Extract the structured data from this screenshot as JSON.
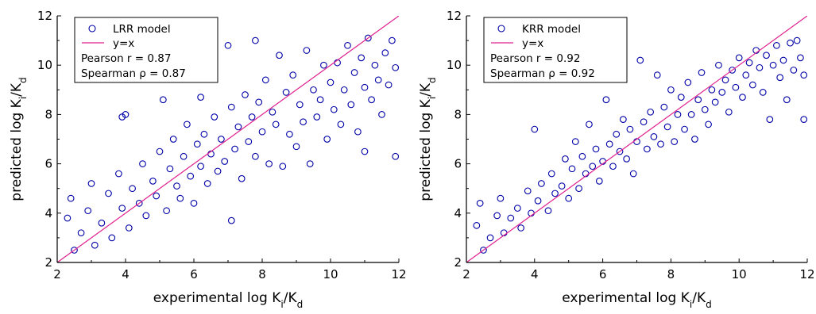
{
  "chart_data": [
    {
      "type": "scatter",
      "xlabel": {
        "base": "experimental log K",
        "sub1": "i",
        "slash": "/K",
        "sub2": "d"
      },
      "ylabel": {
        "base": "predicted log K",
        "sub1": "i",
        "slash": "/K",
        "sub2": "d"
      },
      "xlim": [
        2,
        12
      ],
      "ylim": [
        2,
        12
      ],
      "xticks": [
        2,
        4,
        6,
        8,
        10,
        12
      ],
      "yticks": [
        2,
        4,
        6,
        8,
        10,
        12
      ],
      "legend": {
        "position": "top-left",
        "entries": [
          "LRR model",
          "y=x"
        ],
        "stats": [
          "Pearson r = 0.87",
          "Spearman ρ = 0.87"
        ]
      },
      "series": [
        {
          "name": "LRR model",
          "marker": "open-circle",
          "color": "#0000a8",
          "points": [
            [
              2.3,
              3.8
            ],
            [
              2.5,
              2.5
            ],
            [
              2.4,
              4.6
            ],
            [
              2.7,
              3.2
            ],
            [
              2.9,
              4.1
            ],
            [
              3.1,
              2.7
            ],
            [
              3.0,
              5.2
            ],
            [
              3.3,
              3.6
            ],
            [
              3.5,
              4.8
            ],
            [
              3.6,
              3.0
            ],
            [
              3.8,
              5.6
            ],
            [
              3.9,
              4.2
            ],
            [
              4.0,
              8.0
            ],
            [
              3.9,
              7.9
            ],
            [
              4.1,
              3.4
            ],
            [
              4.2,
              5.0
            ],
            [
              4.4,
              4.4
            ],
            [
              4.5,
              6.0
            ],
            [
              4.6,
              3.9
            ],
            [
              4.8,
              5.3
            ],
            [
              4.9,
              4.7
            ],
            [
              5.0,
              6.5
            ],
            [
              5.1,
              8.6
            ],
            [
              5.2,
              4.1
            ],
            [
              5.3,
              5.8
            ],
            [
              5.4,
              7.0
            ],
            [
              5.5,
              5.1
            ],
            [
              5.6,
              4.6
            ],
            [
              5.7,
              6.3
            ],
            [
              5.8,
              7.6
            ],
            [
              5.9,
              5.5
            ],
            [
              6.0,
              4.4
            ],
            [
              6.1,
              6.8
            ],
            [
              6.2,
              5.9
            ],
            [
              6.2,
              8.7
            ],
            [
              6.3,
              7.2
            ],
            [
              6.4,
              5.2
            ],
            [
              6.5,
              6.4
            ],
            [
              6.6,
              7.9
            ],
            [
              6.7,
              5.7
            ],
            [
              6.8,
              7.0
            ],
            [
              6.9,
              6.1
            ],
            [
              7.0,
              10.8
            ],
            [
              7.1,
              3.7
            ],
            [
              7.1,
              8.3
            ],
            [
              7.2,
              6.6
            ],
            [
              7.3,
              7.5
            ],
            [
              7.4,
              5.4
            ],
            [
              7.5,
              8.8
            ],
            [
              7.6,
              6.9
            ],
            [
              7.7,
              7.9
            ],
            [
              7.8,
              11.0
            ],
            [
              7.8,
              6.3
            ],
            [
              7.9,
              8.5
            ],
            [
              8.0,
              7.3
            ],
            [
              8.1,
              9.4
            ],
            [
              8.2,
              6.0
            ],
            [
              8.3,
              8.1
            ],
            [
              8.4,
              7.6
            ],
            [
              8.5,
              10.4
            ],
            [
              8.6,
              5.9
            ],
            [
              8.7,
              8.9
            ],
            [
              8.8,
              7.2
            ],
            [
              8.9,
              9.6
            ],
            [
              9.0,
              6.7
            ],
            [
              9.1,
              8.4
            ],
            [
              9.2,
              7.7
            ],
            [
              9.3,
              10.6
            ],
            [
              9.4,
              6.0
            ],
            [
              9.5,
              9.0
            ],
            [
              9.6,
              7.9
            ],
            [
              9.7,
              8.6
            ],
            [
              9.8,
              10.0
            ],
            [
              9.9,
              7.0
            ],
            [
              10.0,
              9.3
            ],
            [
              10.1,
              8.2
            ],
            [
              10.2,
              10.1
            ],
            [
              10.3,
              7.6
            ],
            [
              10.4,
              9.0
            ],
            [
              10.5,
              10.8
            ],
            [
              10.6,
              8.4
            ],
            [
              10.7,
              9.7
            ],
            [
              10.8,
              7.3
            ],
            [
              10.9,
              10.3
            ],
            [
              11.0,
              6.5
            ],
            [
              11.0,
              9.1
            ],
            [
              11.1,
              11.1
            ],
            [
              11.2,
              8.6
            ],
            [
              11.3,
              10.0
            ],
            [
              11.4,
              9.4
            ],
            [
              11.5,
              8.0
            ],
            [
              11.6,
              10.5
            ],
            [
              11.7,
              9.2
            ],
            [
              11.8,
              11.0
            ],
            [
              11.9,
              6.3
            ],
            [
              11.9,
              9.9
            ]
          ]
        },
        {
          "name": "y=x",
          "type": "line",
          "color": "#e0208f",
          "x": [
            2,
            12
          ],
          "y": [
            2,
            12
          ]
        }
      ]
    },
    {
      "type": "scatter",
      "xlabel": {
        "base": "experimental log K",
        "sub1": "i",
        "slash": "/K",
        "sub2": "d"
      },
      "ylabel": {
        "base": "predicted log K",
        "sub1": "i",
        "slash": "/K",
        "sub2": "d"
      },
      "xlim": [
        2,
        12
      ],
      "ylim": [
        2,
        12
      ],
      "xticks": [
        2,
        4,
        6,
        8,
        10,
        12
      ],
      "yticks": [
        2,
        4,
        6,
        8,
        10,
        12
      ],
      "legend": {
        "position": "top-left",
        "entries": [
          "KRR model",
          "y=x"
        ],
        "stats": [
          "Pearson r = 0.92",
          "Spearman ρ = 0.92"
        ]
      },
      "series": [
        {
          "name": "KRR model",
          "marker": "open-circle",
          "color": "#0000a8",
          "points": [
            [
              2.3,
              3.5
            ],
            [
              2.5,
              2.5
            ],
            [
              2.4,
              4.4
            ],
            [
              2.7,
              3.0
            ],
            [
              2.9,
              3.9
            ],
            [
              3.1,
              3.2
            ],
            [
              3.0,
              4.6
            ],
            [
              3.3,
              3.8
            ],
            [
              3.5,
              4.2
            ],
            [
              3.6,
              3.4
            ],
            [
              3.8,
              4.9
            ],
            [
              3.9,
              4.0
            ],
            [
              4.0,
              7.4
            ],
            [
              4.1,
              4.5
            ],
            [
              4.2,
              5.2
            ],
            [
              4.4,
              4.1
            ],
            [
              4.5,
              5.6
            ],
            [
              4.6,
              4.8
            ],
            [
              4.8,
              5.1
            ],
            [
              4.9,
              6.2
            ],
            [
              5.0,
              4.6
            ],
            [
              5.1,
              5.8
            ],
            [
              5.2,
              6.9
            ],
            [
              5.3,
              5.0
            ],
            [
              5.4,
              6.3
            ],
            [
              5.5,
              5.6
            ],
            [
              5.6,
              7.6
            ],
            [
              5.7,
              5.9
            ],
            [
              5.8,
              6.6
            ],
            [
              5.9,
              5.3
            ],
            [
              6.0,
              6.1
            ],
            [
              6.1,
              8.6
            ],
            [
              6.2,
              6.8
            ],
            [
              6.3,
              5.9
            ],
            [
              6.4,
              7.2
            ],
            [
              6.5,
              6.5
            ],
            [
              6.6,
              7.8
            ],
            [
              6.7,
              6.2
            ],
            [
              6.8,
              7.4
            ],
            [
              6.9,
              5.6
            ],
            [
              7.0,
              6.9
            ],
            [
              7.1,
              10.2
            ],
            [
              7.2,
              7.7
            ],
            [
              7.3,
              6.6
            ],
            [
              7.4,
              8.1
            ],
            [
              7.5,
              7.1
            ],
            [
              7.6,
              9.6
            ],
            [
              7.7,
              6.8
            ],
            [
              7.8,
              8.3
            ],
            [
              7.9,
              7.5
            ],
            [
              8.0,
              9.0
            ],
            [
              8.1,
              6.9
            ],
            [
              8.2,
              8.0
            ],
            [
              8.3,
              8.7
            ],
            [
              8.4,
              7.4
            ],
            [
              8.5,
              9.3
            ],
            [
              8.6,
              8.0
            ],
            [
              8.7,
              7.0
            ],
            [
              8.8,
              8.6
            ],
            [
              8.9,
              9.7
            ],
            [
              9.0,
              8.2
            ],
            [
              9.1,
              7.6
            ],
            [
              9.2,
              9.0
            ],
            [
              9.3,
              8.5
            ],
            [
              9.4,
              10.0
            ],
            [
              9.5,
              8.9
            ],
            [
              9.6,
              9.4
            ],
            [
              9.7,
              8.1
            ],
            [
              9.8,
              9.8
            ],
            [
              9.9,
              9.1
            ],
            [
              10.0,
              10.3
            ],
            [
              10.1,
              8.7
            ],
            [
              10.2,
              9.6
            ],
            [
              10.3,
              10.1
            ],
            [
              10.4,
              9.2
            ],
            [
              10.5,
              10.6
            ],
            [
              10.6,
              9.9
            ],
            [
              10.7,
              8.9
            ],
            [
              10.8,
              10.4
            ],
            [
              10.9,
              7.8
            ],
            [
              11.0,
              10.0
            ],
            [
              11.1,
              10.8
            ],
            [
              11.2,
              9.5
            ],
            [
              11.3,
              10.2
            ],
            [
              11.4,
              8.6
            ],
            [
              11.5,
              10.9
            ],
            [
              11.6,
              9.8
            ],
            [
              11.7,
              11.0
            ],
            [
              11.8,
              10.3
            ],
            [
              11.9,
              9.6
            ],
            [
              11.9,
              7.8
            ]
          ]
        },
        {
          "name": "y=x",
          "type": "line",
          "color": "#e0208f",
          "x": [
            2,
            12
          ],
          "y": [
            2,
            12
          ]
        }
      ]
    }
  ]
}
